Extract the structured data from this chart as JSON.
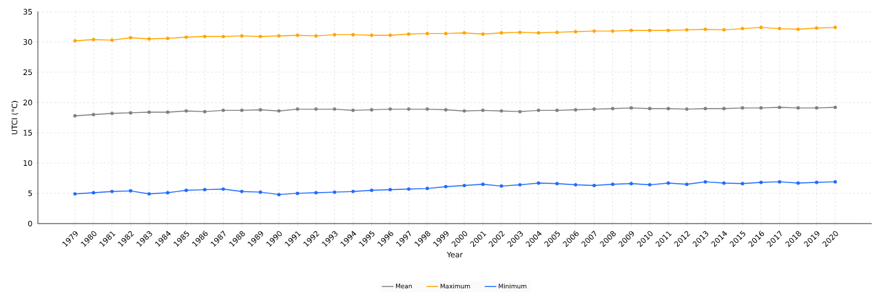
{
  "chart_data": {
    "type": "line",
    "xlabel": "Year",
    "ylabel": "UTCI (°C)",
    "categories": [
      "1979",
      "1980",
      "1981",
      "1982",
      "1983",
      "1984",
      "1985",
      "1986",
      "1987",
      "1988",
      "1989",
      "1990",
      "1991",
      "1992",
      "1993",
      "1994",
      "1995",
      "1996",
      "1997",
      "1998",
      "1999",
      "2000",
      "2001",
      "2002",
      "2003",
      "2004",
      "2005",
      "2006",
      "2007",
      "2008",
      "2009",
      "2010",
      "2011",
      "2012",
      "2013",
      "2014",
      "2015",
      "2016",
      "2017",
      "2018",
      "2019",
      "2020"
    ],
    "series": [
      {
        "name": "Mean",
        "color": "#808080",
        "values": [
          17.8,
          18.0,
          18.2,
          18.3,
          18.4,
          18.4,
          18.6,
          18.5,
          18.7,
          18.7,
          18.8,
          18.6,
          18.9,
          18.9,
          18.9,
          18.7,
          18.8,
          18.9,
          18.9,
          18.9,
          18.8,
          18.6,
          18.7,
          18.6,
          18.5,
          18.7,
          18.7,
          18.8,
          18.9,
          19.0,
          19.1,
          19.0,
          19.0,
          18.9,
          19.0,
          19.0,
          19.1,
          19.1,
          19.2,
          19.1,
          19.1,
          19.2
        ]
      },
      {
        "name": "Maximum",
        "color": "#ffa500",
        "values": [
          30.2,
          30.4,
          30.3,
          30.7,
          30.5,
          30.6,
          30.8,
          30.9,
          30.9,
          31.0,
          30.9,
          31.0,
          31.1,
          31.0,
          31.2,
          31.2,
          31.1,
          31.1,
          31.3,
          31.4,
          31.4,
          31.5,
          31.3,
          31.5,
          31.6,
          31.5,
          31.6,
          31.7,
          31.8,
          31.8,
          31.9,
          31.9,
          31.9,
          32.0,
          32.1,
          32.0,
          32.2,
          32.4,
          32.2,
          32.1,
          32.3,
          32.4
        ]
      },
      {
        "name": "Minimum",
        "color": "#1f6bff",
        "values": [
          4.9,
          5.1,
          5.3,
          5.4,
          4.9,
          5.1,
          5.5,
          5.6,
          5.7,
          5.3,
          5.2,
          4.8,
          5.0,
          5.1,
          5.2,
          5.3,
          5.5,
          5.6,
          5.7,
          5.8,
          6.1,
          6.3,
          6.5,
          6.2,
          6.4,
          6.7,
          6.6,
          6.4,
          6.3,
          6.5,
          6.6,
          6.4,
          6.7,
          6.5,
          6.9,
          6.7,
          6.6,
          6.8,
          6.9,
          6.7,
          6.8,
          6.9
        ]
      }
    ],
    "ylim": [
      0,
      35
    ],
    "yticks": [
      0,
      5,
      10,
      15,
      20,
      25,
      30,
      35
    ],
    "grid": true,
    "legend": "bottom",
    "marker": "circle",
    "line_style": "solid"
  }
}
